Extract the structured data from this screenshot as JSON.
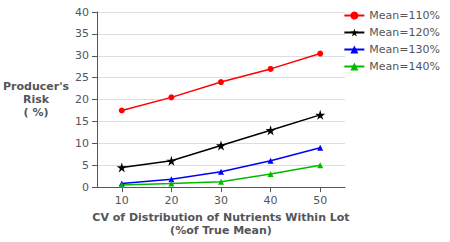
{
  "chart_data": {
    "type": "line",
    "xlabel": "CV of Distribution of Nutrients Within Lot\n(%of True Mean)",
    "ylabel": "Producer's\nRisk\n( %)",
    "x": [
      10,
      20,
      30,
      40,
      50
    ],
    "series": [
      {
        "name": "Mean=110%",
        "color": "#ff0000",
        "marker": "circle",
        "values": [
          17.5,
          20.5,
          24.0,
          27.0,
          30.5
        ]
      },
      {
        "name": "Mean=120%",
        "color": "#000000",
        "marker": "star",
        "values": [
          4.5,
          6.0,
          9.5,
          13.0,
          16.5
        ]
      },
      {
        "name": "Mean=130%",
        "color": "#0000ff",
        "marker": "triangle",
        "values": [
          0.8,
          1.8,
          3.5,
          6.0,
          9.0
        ]
      },
      {
        "name": "Mean=140%",
        "color": "#00bb00",
        "marker": "triangle",
        "values": [
          0.5,
          0.8,
          1.2,
          3.0,
          5.0
        ]
      }
    ],
    "xlim": [
      5,
      55
    ],
    "xticks": [
      10,
      20,
      30,
      40,
      50
    ],
    "ylim": [
      0,
      40
    ],
    "yticks": [
      0,
      5,
      10,
      15,
      20,
      25,
      30,
      35,
      40
    ],
    "grid": true,
    "legend": "upper right"
  }
}
